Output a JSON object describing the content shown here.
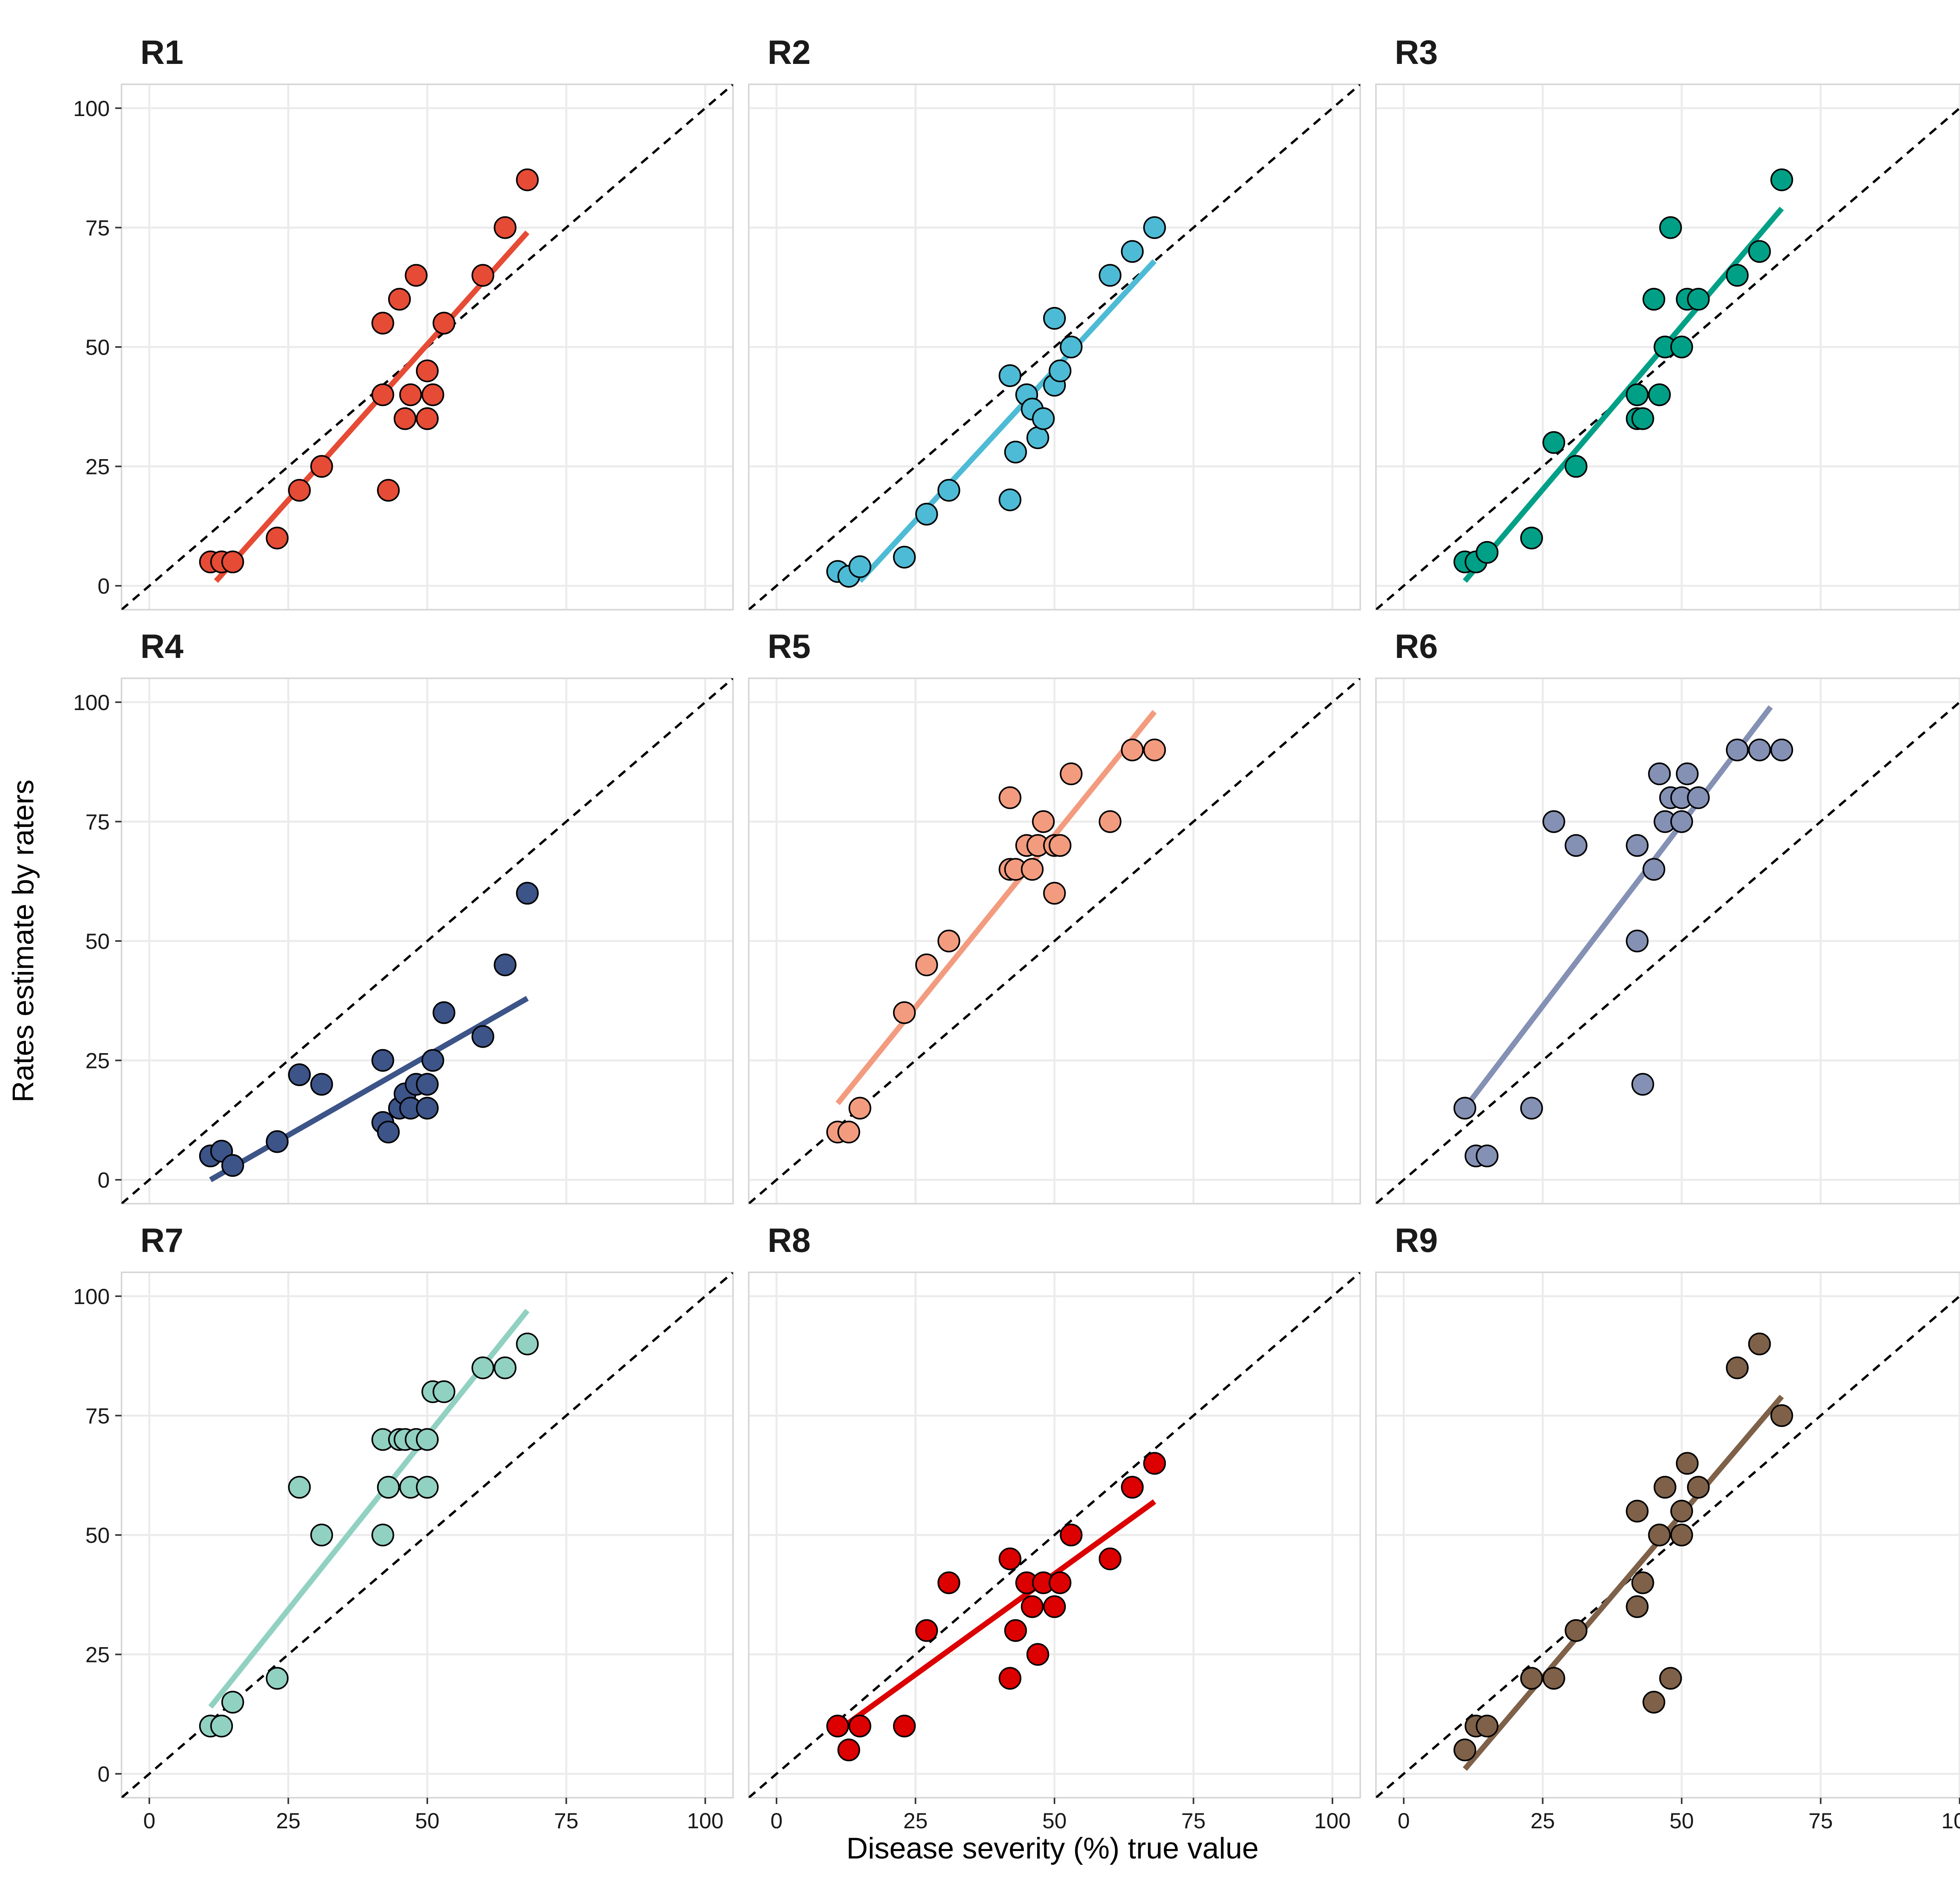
{
  "chart_data": {
    "type": "scatter",
    "xlabel": "Disease severity (%) true value",
    "ylabel": "Rates estimate by raters",
    "xlim": [
      -5,
      105
    ],
    "ylim": [
      -5,
      105
    ],
    "xticks": [
      0,
      25,
      50,
      75,
      100
    ],
    "yticks": [
      0,
      25,
      50,
      75,
      100
    ],
    "grid": true,
    "reference_line": "dashed identity line y = x",
    "panels": [
      {
        "title": "R1",
        "color": "#E64B35",
        "fit": {
          "x": [
            12,
            68
          ],
          "y": [
            1,
            74
          ]
        },
        "points": [
          [
            11,
            5
          ],
          [
            13,
            5
          ],
          [
            15,
            5
          ],
          [
            23,
            10
          ],
          [
            27,
            20
          ],
          [
            31,
            25
          ],
          [
            42,
            55
          ],
          [
            42,
            40
          ],
          [
            43,
            20
          ],
          [
            45,
            60
          ],
          [
            46,
            35
          ],
          [
            47,
            40
          ],
          [
            48,
            65
          ],
          [
            50,
            45
          ],
          [
            50,
            35
          ],
          [
            51,
            40
          ],
          [
            53,
            55
          ],
          [
            60,
            65
          ],
          [
            64,
            75
          ],
          [
            68,
            85
          ]
        ]
      },
      {
        "title": "R2",
        "color": "#4DBBD5",
        "fit": {
          "x": [
            15,
            68
          ],
          "y": [
            1,
            68
          ]
        },
        "points": [
          [
            11,
            3
          ],
          [
            13,
            2
          ],
          [
            15,
            4
          ],
          [
            23,
            6
          ],
          [
            27,
            15
          ],
          [
            31,
            20
          ],
          [
            42,
            44
          ],
          [
            42,
            18
          ],
          [
            43,
            28
          ],
          [
            45,
            40
          ],
          [
            46,
            37
          ],
          [
            47,
            31
          ],
          [
            48,
            35
          ],
          [
            50,
            42
          ],
          [
            50,
            56
          ],
          [
            51,
            45
          ],
          [
            53,
            50
          ],
          [
            60,
            65
          ],
          [
            64,
            70
          ],
          [
            68,
            75
          ]
        ]
      },
      {
        "title": "R3",
        "color": "#00A087",
        "fit": {
          "x": [
            11,
            68
          ],
          "y": [
            1,
            79
          ]
        },
        "points": [
          [
            11,
            5
          ],
          [
            13,
            5
          ],
          [
            15,
            7
          ],
          [
            23,
            10
          ],
          [
            27,
            30
          ],
          [
            31,
            25
          ],
          [
            42,
            40
          ],
          [
            42,
            35
          ],
          [
            43,
            35
          ],
          [
            45,
            60
          ],
          [
            46,
            40
          ],
          [
            47,
            50
          ],
          [
            48,
            75
          ],
          [
            50,
            50
          ],
          [
            51,
            60
          ],
          [
            53,
            60
          ],
          [
            60,
            65
          ],
          [
            64,
            70
          ],
          [
            68,
            85
          ]
        ]
      },
      {
        "title": "R4",
        "color": "#3C5488",
        "fit": {
          "x": [
            11,
            68
          ],
          "y": [
            0,
            38
          ]
        },
        "points": [
          [
            11,
            5
          ],
          [
            13,
            6
          ],
          [
            15,
            3
          ],
          [
            23,
            8
          ],
          [
            27,
            22
          ],
          [
            31,
            20
          ],
          [
            42,
            25
          ],
          [
            42,
            12
          ],
          [
            43,
            10
          ],
          [
            45,
            15
          ],
          [
            46,
            18
          ],
          [
            47,
            15
          ],
          [
            48,
            20
          ],
          [
            50,
            15
          ],
          [
            50,
            20
          ],
          [
            51,
            25
          ],
          [
            53,
            35
          ],
          [
            60,
            30
          ],
          [
            64,
            45
          ],
          [
            68,
            60
          ]
        ]
      },
      {
        "title": "R5",
        "color": "#F39B7F",
        "fit": {
          "x": [
            11,
            68
          ],
          "y": [
            16,
            98
          ]
        },
        "points": [
          [
            11,
            10
          ],
          [
            13,
            10
          ],
          [
            15,
            15
          ],
          [
            23,
            35
          ],
          [
            27,
            45
          ],
          [
            31,
            50
          ],
          [
            42,
            80
          ],
          [
            42,
            65
          ],
          [
            43,
            65
          ],
          [
            45,
            70
          ],
          [
            46,
            65
          ],
          [
            47,
            70
          ],
          [
            48,
            75
          ],
          [
            50,
            70
          ],
          [
            50,
            60
          ],
          [
            51,
            70
          ],
          [
            53,
            85
          ],
          [
            60,
            75
          ],
          [
            64,
            90
          ],
          [
            68,
            90
          ]
        ]
      },
      {
        "title": "R6",
        "color": "#8491B4",
        "fit": {
          "x": [
            11,
            66
          ],
          "y": [
            15,
            99
          ]
        },
        "points": [
          [
            11,
            15
          ],
          [
            13,
            5
          ],
          [
            15,
            5
          ],
          [
            23,
            15
          ],
          [
            27,
            75
          ],
          [
            31,
            70
          ],
          [
            42,
            70
          ],
          [
            42,
            50
          ],
          [
            43,
            20
          ],
          [
            45,
            65
          ],
          [
            46,
            85
          ],
          [
            47,
            75
          ],
          [
            48,
            80
          ],
          [
            50,
            80
          ],
          [
            50,
            75
          ],
          [
            51,
            85
          ],
          [
            53,
            80
          ],
          [
            60,
            90
          ],
          [
            64,
            90
          ],
          [
            68,
            90
          ]
        ]
      },
      {
        "title": "R7",
        "color": "#91D1C2",
        "fit": {
          "x": [
            11,
            68
          ],
          "y": [
            14,
            97
          ]
        },
        "points": [
          [
            11,
            10
          ],
          [
            13,
            10
          ],
          [
            15,
            15
          ],
          [
            23,
            20
          ],
          [
            27,
            60
          ],
          [
            31,
            50
          ],
          [
            42,
            70
          ],
          [
            42,
            50
          ],
          [
            43,
            60
          ],
          [
            45,
            70
          ],
          [
            46,
            70
          ],
          [
            47,
            60
          ],
          [
            48,
            70
          ],
          [
            50,
            70
          ],
          [
            50,
            60
          ],
          [
            51,
            80
          ],
          [
            53,
            80
          ],
          [
            60,
            85
          ],
          [
            64,
            85
          ],
          [
            68,
            90
          ]
        ]
      },
      {
        "title": "R8",
        "color": "#DC0000",
        "fit": {
          "x": [
            11,
            68
          ],
          "y": [
            9,
            57
          ]
        },
        "points": [
          [
            11,
            10
          ],
          [
            13,
            5
          ],
          [
            15,
            10
          ],
          [
            23,
            10
          ],
          [
            27,
            30
          ],
          [
            31,
            40
          ],
          [
            42,
            45
          ],
          [
            42,
            20
          ],
          [
            43,
            30
          ],
          [
            45,
            40
          ],
          [
            46,
            35
          ],
          [
            47,
            25
          ],
          [
            48,
            40
          ],
          [
            50,
            35
          ],
          [
            51,
            40
          ],
          [
            53,
            50
          ],
          [
            60,
            45
          ],
          [
            64,
            60
          ],
          [
            68,
            65
          ]
        ]
      },
      {
        "title": "R9",
        "color": "#7E6148",
        "fit": {
          "x": [
            11,
            68
          ],
          "y": [
            1,
            79
          ]
        },
        "points": [
          [
            11,
            5
          ],
          [
            13,
            10
          ],
          [
            15,
            10
          ],
          [
            23,
            20
          ],
          [
            27,
            20
          ],
          [
            31,
            30
          ],
          [
            42,
            55
          ],
          [
            42,
            35
          ],
          [
            43,
            40
          ],
          [
            45,
            15
          ],
          [
            46,
            50
          ],
          [
            47,
            60
          ],
          [
            48,
            20
          ],
          [
            50,
            50
          ],
          [
            50,
            55
          ],
          [
            51,
            65
          ],
          [
            53,
            60
          ],
          [
            60,
            85
          ],
          [
            64,
            90
          ],
          [
            68,
            75
          ]
        ]
      }
    ]
  }
}
